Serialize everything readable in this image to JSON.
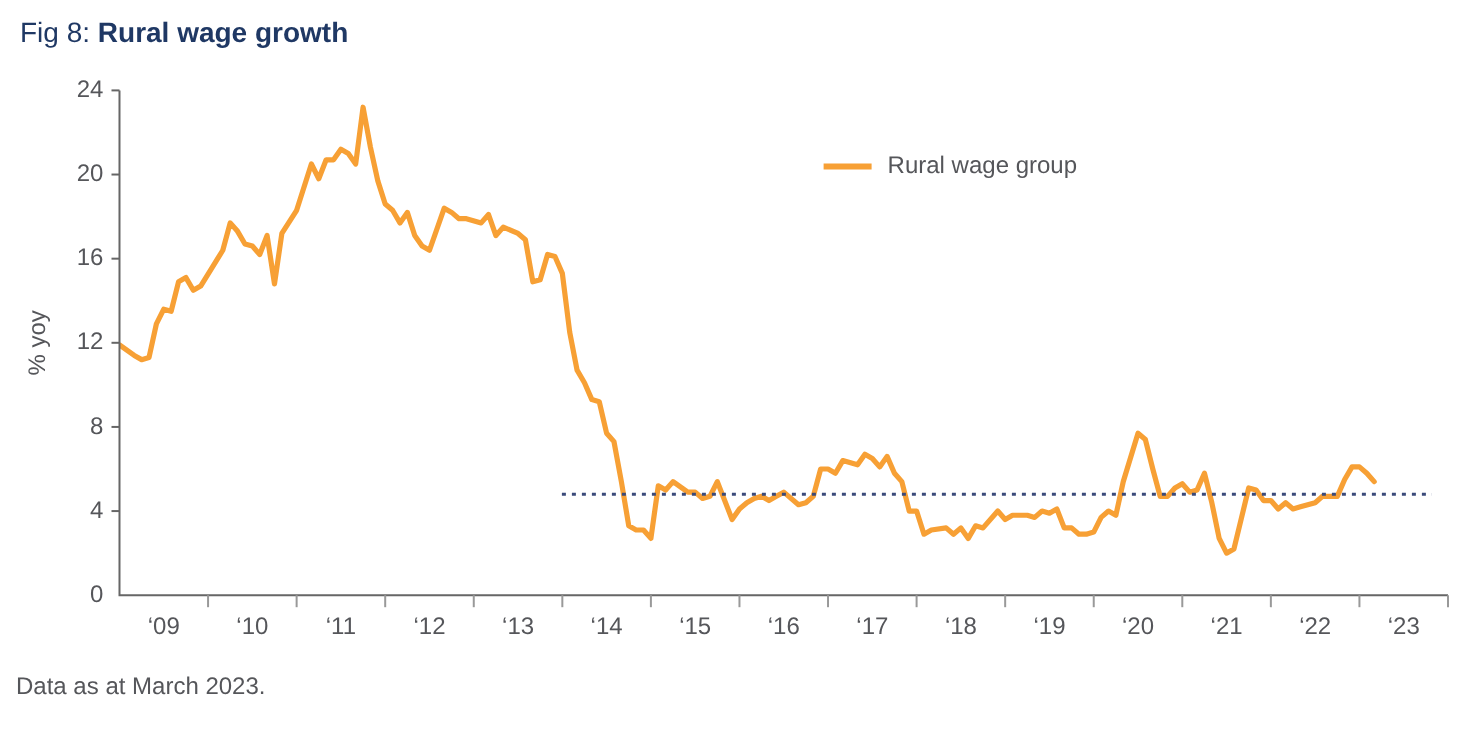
{
  "chart_data": {
    "type": "line",
    "title": "Fig 8: Rural wage growth",
    "ylabel": "% yoy",
    "annotations": [
      "Data as at March 2023."
    ],
    "xlim": [
      "2009-01",
      "2024-01"
    ],
    "xticks": [
      {
        "value": "2009-07",
        "label": "‘09"
      },
      {
        "value": "2010-07",
        "label": "‘10"
      },
      {
        "value": "2011-07",
        "label": "‘11"
      },
      {
        "value": "2012-07",
        "label": "‘12"
      },
      {
        "value": "2013-07",
        "label": "‘13"
      },
      {
        "value": "2014-07",
        "label": "‘14"
      },
      {
        "value": "2015-07",
        "label": "‘15"
      },
      {
        "value": "2016-07",
        "label": "‘16"
      },
      {
        "value": "2017-07",
        "label": "‘17"
      },
      {
        "value": "2018-07",
        "label": "‘18"
      },
      {
        "value": "2019-07",
        "label": "‘19"
      },
      {
        "value": "2020-07",
        "label": "‘20"
      },
      {
        "value": "2021-07",
        "label": "‘21"
      },
      {
        "value": "2022-07",
        "label": "‘22"
      },
      {
        "value": "2023-07",
        "label": "‘23"
      }
    ],
    "ylim": [
      0,
      24
    ],
    "yticks": [
      0,
      4,
      8,
      12,
      16,
      20,
      24
    ],
    "grid": false,
    "legend": "top right",
    "marker": "none",
    "line_style": "solid",
    "ref_lines": [
      {
        "axis": "y",
        "value": 4.8,
        "label": null,
        "color": "#3b4a7a",
        "line_style": "dotted"
      }
    ],
    "series": [
      {
        "name": "Rural wage group",
        "color": "#f7a035",
        "x": [
          "2009-01",
          "2009-03",
          "2009-04",
          "2009-05",
          "2009-06",
          "2009-07",
          "2009-08",
          "2009-09",
          "2009-10",
          "2009-11",
          "2009-12",
          "2010-03",
          "2010-04",
          "2010-05",
          "2010-06",
          "2010-07",
          "2010-08",
          "2010-09",
          "2010-10",
          "2010-11",
          "2011-01",
          "2011-03",
          "2011-04",
          "2011-05",
          "2011-06",
          "2011-07",
          "2011-08",
          "2011-09",
          "2011-10",
          "2011-11",
          "2011-12",
          "2012-01",
          "2012-02",
          "2012-03",
          "2012-04",
          "2012-05",
          "2012-06",
          "2012-07",
          "2012-09",
          "2012-10",
          "2012-11",
          "2012-12",
          "2013-02",
          "2013-03",
          "2013-04",
          "2013-05",
          "2013-07",
          "2013-08",
          "2013-09",
          "2013-10",
          "2013-11",
          "2013-12",
          "2014-01",
          "2014-02",
          "2014-03",
          "2014-04",
          "2014-05",
          "2014-06",
          "2014-07",
          "2014-08",
          "2014-09",
          "2014-10",
          "2014-11",
          "2014-12",
          "2015-01",
          "2015-02",
          "2015-03",
          "2015-04",
          "2015-06",
          "2015-07",
          "2015-08",
          "2015-09",
          "2015-10",
          "2015-12",
          "2016-01",
          "2016-02",
          "2016-03",
          "2016-04",
          "2016-05",
          "2016-06",
          "2016-07",
          "2016-09",
          "2016-10",
          "2016-11",
          "2016-12",
          "2017-01",
          "2017-02",
          "2017-03",
          "2017-05",
          "2017-06",
          "2017-07",
          "2017-08",
          "2017-09",
          "2017-10",
          "2017-11",
          "2017-12",
          "2018-01",
          "2018-02",
          "2018-03",
          "2018-05",
          "2018-06",
          "2018-07",
          "2018-08",
          "2018-09",
          "2018-10",
          "2018-12",
          "2019-01",
          "2019-02",
          "2019-04",
          "2019-05",
          "2019-06",
          "2019-07",
          "2019-08",
          "2019-09",
          "2019-10",
          "2019-11",
          "2019-12",
          "2020-01",
          "2020-02",
          "2020-03",
          "2020-04",
          "2020-05",
          "2020-07",
          "2020-08",
          "2020-09",
          "2020-10",
          "2020-11",
          "2020-12",
          "2021-01",
          "2021-02",
          "2021-03",
          "2021-04",
          "2021-05",
          "2021-06",
          "2021-07",
          "2021-08",
          "2021-10",
          "2021-11",
          "2021-12",
          "2022-01",
          "2022-02",
          "2022-03",
          "2022-04",
          "2022-05",
          "2022-07",
          "2022-08",
          "2022-10",
          "2022-11",
          "2022-12",
          "2023-01",
          "2023-02",
          "2023-03"
        ],
        "values": [
          11.9,
          11.4,
          11.2,
          11.3,
          12.9,
          13.6,
          13.5,
          14.9,
          15.1,
          14.5,
          14.7,
          16.4,
          17.7,
          17.3,
          16.7,
          16.6,
          16.2,
          17.1,
          14.8,
          17.2,
          18.3,
          20.5,
          19.8,
          20.7,
          20.7,
          21.2,
          21.0,
          20.5,
          23.2,
          21.3,
          19.7,
          18.6,
          18.3,
          17.7,
          18.2,
          17.1,
          16.6,
          16.4,
          18.4,
          18.2,
          17.9,
          17.9,
          17.7,
          18.1,
          17.1,
          17.5,
          17.2,
          16.9,
          14.9,
          15.0,
          16.2,
          16.1,
          15.3,
          12.5,
          10.7,
          10.1,
          9.3,
          9.2,
          7.7,
          7.3,
          5.4,
          3.3,
          3.1,
          3.1,
          2.7,
          5.2,
          5.0,
          5.4,
          4.9,
          4.9,
          4.6,
          4.7,
          5.4,
          3.6,
          4.1,
          4.4,
          4.6,
          4.7,
          4.5,
          4.7,
          4.9,
          4.3,
          4.4,
          4.7,
          6.0,
          6.0,
          5.8,
          6.4,
          6.2,
          6.7,
          6.5,
          6.1,
          6.6,
          5.8,
          5.4,
          4.0,
          4.0,
          2.9,
          3.1,
          3.2,
          2.9,
          3.2,
          2.7,
          3.3,
          3.2,
          4.0,
          3.6,
          3.8,
          3.8,
          3.7,
          4.0,
          3.9,
          4.1,
          3.2,
          3.2,
          2.9,
          2.9,
          3.0,
          3.7,
          4.0,
          3.8,
          5.4,
          7.7,
          7.4,
          6.0,
          4.7,
          4.7,
          5.1,
          5.3,
          4.9,
          5.0,
          5.8,
          4.4,
          2.7,
          2.0,
          2.2,
          5.1,
          5.0,
          4.5,
          4.5,
          4.1,
          4.4,
          4.1,
          4.2,
          4.4,
          4.7,
          4.7,
          5.5,
          6.1,
          6.1,
          5.8,
          5.4
        ]
      }
    ]
  }
}
